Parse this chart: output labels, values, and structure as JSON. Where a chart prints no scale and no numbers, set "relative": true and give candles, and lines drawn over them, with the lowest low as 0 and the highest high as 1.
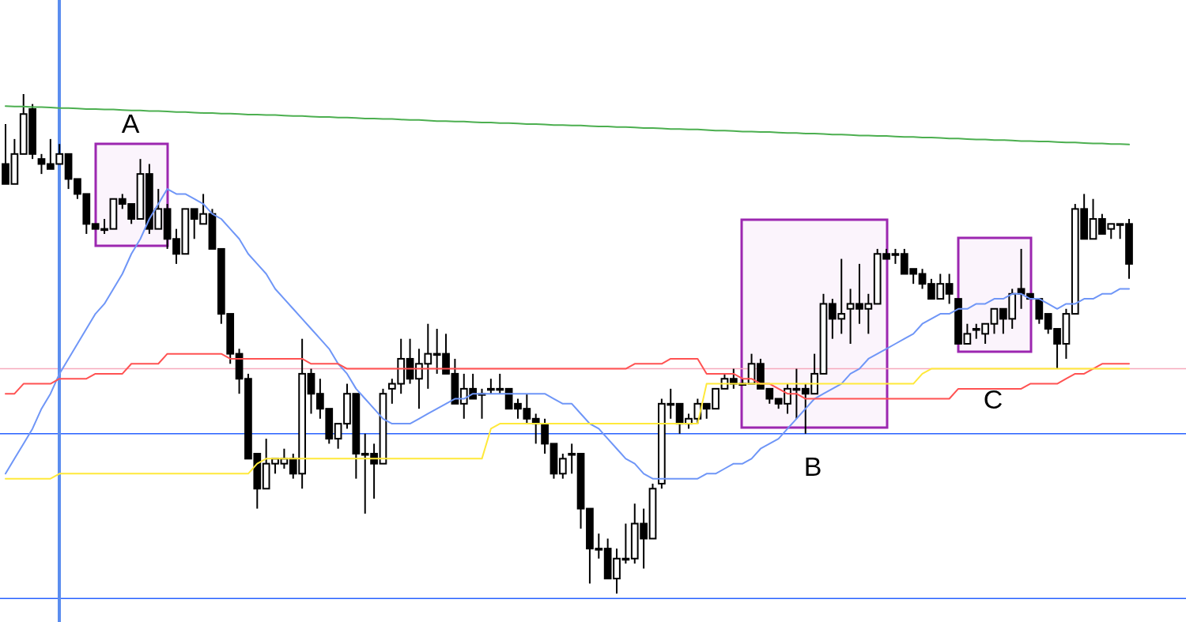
{
  "chart_data": {
    "type": "candlestick",
    "relative": true,
    "tick_labels": false,
    "categories": [
      null,
      null,
      null,
      null,
      null,
      null,
      null,
      null,
      null,
      null,
      null,
      null,
      null,
      null,
      null,
      null,
      null,
      null,
      null,
      null,
      null,
      null,
      null,
      null,
      null,
      null,
      null,
      null,
      null,
      null,
      null,
      null,
      null,
      null,
      null,
      null,
      null,
      null,
      null,
      null,
      null,
      null,
      null,
      null,
      null,
      null,
      null,
      null,
      null,
      null,
      null,
      null,
      null,
      null,
      null,
      null,
      null,
      null,
      null,
      null,
      null,
      null,
      null,
      null,
      null,
      null,
      null,
      null,
      null,
      null,
      null,
      null,
      null,
      null,
      null,
      null,
      null,
      null,
      null,
      null,
      null,
      null,
      null,
      null,
      null,
      null,
      null,
      null,
      null,
      null,
      null,
      null,
      null,
      null,
      null,
      null,
      null,
      null,
      null,
      null,
      null,
      null,
      null,
      null,
      null,
      null,
      null,
      null,
      null,
      null,
      null,
      null,
      null,
      null,
      null,
      null,
      null,
      null,
      null,
      null,
      null,
      null,
      null,
      null,
      null,
      null
    ],
    "ohlc": [
      [
        0.86,
        0.94,
        0.82,
        0.82
      ],
      [
        0.82,
        0.91,
        0.82,
        0.88
      ],
      [
        0.88,
        1,
        0.88,
        0.96
      ],
      [
        0.97,
        0.98,
        0.87,
        0.88
      ],
      [
        0.87,
        0.88,
        0.84,
        0.86
      ],
      [
        0.86,
        0.91,
        0.85,
        0.85
      ],
      [
        0.86,
        0.9,
        0.86,
        0.88
      ],
      [
        0.88,
        0.88,
        0.81,
        0.83
      ],
      [
        0.83,
        0.83,
        0.79,
        0.8
      ],
      [
        0.8,
        0.8,
        0.72,
        0.74
      ],
      [
        0.74,
        0.74,
        0.73,
        0.73
      ],
      [
        0.73,
        0.75,
        0.72,
        0.73
      ],
      [
        0.73,
        0.79,
        0.73,
        0.79
      ],
      [
        0.79,
        0.8,
        0.77,
        0.78
      ],
      [
        0.78,
        0.78,
        0.74,
        0.75
      ],
      [
        0.75,
        0.87,
        0.75,
        0.84
      ],
      [
        0.84,
        0.86,
        0.72,
        0.73
      ],
      [
        0.73,
        0.81,
        0.73,
        0.77
      ],
      [
        0.77,
        0.78,
        0.69,
        0.71
      ],
      [
        0.71,
        0.73,
        0.66,
        0.68
      ],
      [
        0.68,
        0.77,
        0.68,
        0.77
      ],
      [
        0.77,
        0.77,
        0.71,
        0.75
      ],
      [
        0.74,
        0.8,
        0.74,
        0.76
      ],
      [
        0.76,
        0.77,
        0.69,
        0.69
      ],
      [
        0.69,
        0.69,
        0.54,
        0.56
      ],
      [
        0.56,
        0.56,
        0.46,
        0.48
      ],
      [
        0.48,
        0.49,
        0.4,
        0.43
      ],
      [
        0.43,
        0.44,
        0.27,
        0.27
      ],
      [
        0.28,
        0.28,
        0.17,
        0.21
      ],
      [
        0.21,
        0.31,
        0.21,
        0.26
      ],
      [
        0.26,
        0.27,
        0.24,
        0.27
      ],
      [
        0.26,
        0.29,
        0.25,
        0.27
      ],
      [
        0.27,
        0.28,
        0.23,
        0.24
      ],
      [
        0.24,
        0.51,
        0.21,
        0.44
      ],
      [
        0.44,
        0.45,
        0.36,
        0.4
      ],
      [
        0.4,
        0.43,
        0.35,
        0.37
      ],
      [
        0.37,
        0.37,
        0.3,
        0.31
      ],
      [
        0.31,
        0.34,
        0.29,
        0.34
      ],
      [
        0.34,
        0.42,
        0.33,
        0.4
      ],
      [
        0.4,
        0.4,
        0.23,
        0.28
      ],
      [
        0.28,
        0.32,
        0.16,
        0.28
      ],
      [
        0.28,
        0.3,
        0.19,
        0.26
      ],
      [
        0.26,
        0.41,
        0.26,
        0.4
      ],
      [
        0.41,
        0.43,
        0.38,
        0.42
      ],
      [
        0.42,
        0.51,
        0.4,
        0.47
      ],
      [
        0.47,
        0.51,
        0.42,
        0.43
      ],
      [
        0.43,
        0.49,
        0.37,
        0.46
      ],
      [
        0.46,
        0.54,
        0.41,
        0.48
      ],
      [
        0.48,
        0.53,
        0.44,
        0.48
      ],
      [
        0.48,
        0.52,
        0.44,
        0.44
      ],
      [
        0.44,
        0.47,
        0.38,
        0.38
      ],
      [
        0.38,
        0.44,
        0.35,
        0.41
      ],
      [
        0.41,
        0.44,
        0.39,
        0.39
      ],
      [
        0.4,
        0.41,
        0.35,
        0.4
      ],
      [
        0.41,
        0.43,
        0.4,
        0.41
      ],
      [
        0.41,
        0.44,
        0.4,
        0.41
      ],
      [
        0.41,
        0.41,
        0.37,
        0.37
      ],
      [
        0.38,
        0.39,
        0.35,
        0.37
      ],
      [
        0.37,
        0.4,
        0.34,
        0.35
      ],
      [
        0.35,
        0.36,
        0.3,
        0.34
      ],
      [
        0.34,
        0.35,
        0.28,
        0.3
      ],
      [
        0.3,
        0.3,
        0.23,
        0.24
      ],
      [
        0.24,
        0.28,
        0.23,
        0.27
      ],
      [
        0.28,
        0.3,
        0.24,
        0.28
      ],
      [
        0.28,
        0.28,
        0.13,
        0.17
      ],
      [
        0.17,
        0.17,
        0.02,
        0.09
      ],
      [
        0.09,
        0.12,
        0.07,
        0.09
      ],
      [
        0.09,
        0.11,
        0.03,
        0.03
      ],
      [
        0.03,
        0.09,
        0,
        0.07
      ],
      [
        0.07,
        0.14,
        0.06,
        0.07
      ],
      [
        0.07,
        0.18,
        0.06,
        0.14
      ],
      [
        0.14,
        0.17,
        0.05,
        0.11
      ],
      [
        0.11,
        0.22,
        0.11,
        0.21
      ],
      [
        0.22,
        0.39,
        0.21,
        0.38
      ],
      [
        0.38,
        0.41,
        0.35,
        0.38
      ],
      [
        0.38,
        0.38,
        0.32,
        0.34
      ],
      [
        0.34,
        0.36,
        0.33,
        0.35
      ],
      [
        0.35,
        0.39,
        0.34,
        0.38
      ],
      [
        0.38,
        0.38,
        0.35,
        0.37
      ],
      [
        0.37,
        0.41,
        0.37,
        0.41
      ],
      [
        0.41,
        0.44,
        0.41,
        0.43
      ],
      [
        0.43,
        0.45,
        0.41,
        0.42
      ],
      [
        0.42,
        0.43,
        0.42,
        0.42
      ],
      [
        0.42,
        0.48,
        0.42,
        0.46
      ],
      [
        0.46,
        0.47,
        0.41,
        0.41
      ],
      [
        0.41,
        0.41,
        0.38,
        0.39
      ],
      [
        0.39,
        0.39,
        0.37,
        0.38
      ],
      [
        0.38,
        0.42,
        0.36,
        0.41
      ],
      [
        0.41,
        0.45,
        0.35,
        0.41
      ],
      [
        0.41,
        0.42,
        0.32,
        0.4
      ],
      [
        0.4,
        0.48,
        0.4,
        0.44
      ],
      [
        0.44,
        0.6,
        0.44,
        0.58
      ],
      [
        0.58,
        0.59,
        0.51,
        0.55
      ],
      [
        0.55,
        0.67,
        0.52,
        0.56
      ],
      [
        0.57,
        0.61,
        0.5,
        0.58
      ],
      [
        0.58,
        0.66,
        0.54,
        0.57
      ],
      [
        0.57,
        0.6,
        0.52,
        0.58
      ],
      [
        0.58,
        0.69,
        0.58,
        0.68
      ],
      [
        0.68,
        0.69,
        0.67,
        0.67
      ],
      [
        0.68,
        0.69,
        0.66,
        0.68
      ],
      [
        0.68,
        0.69,
        0.64,
        0.64
      ],
      [
        0.65,
        0.65,
        0.62,
        0.64
      ],
      [
        0.64,
        0.65,
        0.61,
        0.62
      ],
      [
        0.62,
        0.63,
        0.59,
        0.59
      ],
      [
        0.59,
        0.64,
        0.59,
        0.62
      ],
      [
        0.62,
        0.64,
        0.58,
        0.6
      ],
      [
        0.59,
        0.59,
        0.5,
        0.5
      ],
      [
        0.5,
        0.54,
        0.5,
        0.52
      ],
      [
        0.53,
        0.54,
        0.51,
        0.53
      ],
      [
        0.52,
        0.54,
        0.5,
        0.54
      ],
      [
        0.54,
        0.57,
        0.52,
        0.57
      ],
      [
        0.57,
        0.57,
        0.52,
        0.55
      ],
      [
        0.55,
        0.61,
        0.53,
        0.6
      ],
      [
        0.61,
        0.69,
        0.57,
        0.6
      ],
      [
        0.6,
        0.6,
        0.59,
        0.59
      ],
      [
        0.59,
        0.59,
        0.54,
        0.55
      ],
      [
        0.56,
        0.56,
        0.52,
        0.53
      ],
      [
        0.53,
        0.53,
        0.45,
        0.5
      ],
      [
        0.5,
        0.57,
        0.47,
        0.56
      ],
      [
        0.56,
        0.78,
        0.56,
        0.77
      ],
      [
        0.77,
        0.8,
        0.71,
        0.71
      ],
      [
        0.71,
        0.79,
        0.71,
        0.75
      ],
      [
        0.75,
        0.76,
        0.72,
        0.72
      ],
      [
        0.73,
        0.74,
        0.71,
        0.74
      ],
      [
        0.74,
        0.74,
        0.71,
        0.74
      ],
      [
        0.74,
        0.75,
        0.63,
        0.66
      ]
    ],
    "series": [
      {
        "type": "line",
        "color": "#4caf50",
        "values": [
          0.976,
          0.975,
          0.975,
          0.974,
          0.974,
          0.973,
          0.972,
          0.972,
          0.971,
          0.97,
          0.97,
          0.969,
          0.969,
          0.968,
          0.967,
          0.967,
          0.966,
          0.966,
          0.965,
          0.964,
          0.964,
          0.963,
          0.962,
          0.962,
          0.961,
          0.961,
          0.96,
          0.959,
          0.959,
          0.958,
          0.958,
          0.957,
          0.956,
          0.956,
          0.955,
          0.954,
          0.954,
          0.953,
          0.953,
          0.952,
          0.951,
          0.951,
          0.95,
          0.95,
          0.949,
          0.948,
          0.948,
          0.947,
          0.946,
          0.946,
          0.945,
          0.945,
          0.944,
          0.943,
          0.943,
          0.942,
          0.942,
          0.941,
          0.94,
          0.94,
          0.939,
          0.938,
          0.938,
          0.937,
          0.937,
          0.936,
          0.935,
          0.935,
          0.934,
          0.934,
          0.933,
          0.932,
          0.932,
          0.931,
          0.93,
          0.93,
          0.929,
          0.929,
          0.928,
          0.927,
          0.927,
          0.926,
          0.925,
          0.925,
          0.924,
          0.924,
          0.923,
          0.922,
          0.922,
          0.921,
          0.921,
          0.92,
          0.919,
          0.919,
          0.918,
          0.917,
          0.917,
          0.916,
          0.916,
          0.915,
          0.914,
          0.914,
          0.913,
          0.913,
          0.912,
          0.911,
          0.911,
          0.91,
          0.909,
          0.909,
          0.908,
          0.908,
          0.907,
          0.906,
          0.906,
          0.905,
          0.905,
          0.904,
          0.903,
          0.903,
          0.902,
          0.901,
          0.901,
          0.9,
          0.9,
          0.899
        ]
      },
      {
        "type": "line",
        "color": "#6f96f7",
        "values": [
          0.24,
          0.27,
          0.3,
          0.33,
          0.37,
          0.4,
          0.44,
          0.47,
          0.5,
          0.53,
          0.56,
          0.58,
          0.61,
          0.64,
          0.68,
          0.71,
          0.75,
          0.78,
          0.81,
          0.8,
          0.8,
          0.79,
          0.78,
          0.76,
          0.75,
          0.73,
          0.71,
          0.68,
          0.66,
          0.64,
          0.61,
          0.59,
          0.57,
          0.55,
          0.53,
          0.51,
          0.49,
          0.46,
          0.44,
          0.41,
          0.39,
          0.37,
          0.35,
          0.34,
          0.34,
          0.34,
          0.35,
          0.36,
          0.37,
          0.38,
          0.39,
          0.39,
          0.4,
          0.4,
          0.4,
          0.4,
          0.4,
          0.4,
          0.4,
          0.4,
          0.4,
          0.39,
          0.38,
          0.38,
          0.36,
          0.34,
          0.33,
          0.31,
          0.29,
          0.27,
          0.26,
          0.24,
          0.23,
          0.23,
          0.23,
          0.23,
          0.23,
          0.23,
          0.24,
          0.24,
          0.25,
          0.26,
          0.26,
          0.27,
          0.29,
          0.3,
          0.31,
          0.33,
          0.35,
          0.37,
          0.39,
          0.4,
          0.41,
          0.42,
          0.44,
          0.45,
          0.47,
          0.48,
          0.49,
          0.5,
          0.51,
          0.52,
          0.54,
          0.55,
          0.56,
          0.56,
          0.57,
          0.57,
          0.58,
          0.58,
          0.59,
          0.59,
          0.6,
          0.6,
          0.59,
          0.59,
          0.58,
          0.57,
          0.58,
          0.58,
          0.59,
          0.59,
          0.6,
          0.6,
          0.61,
          0.61
        ]
      },
      {
        "type": "line",
        "color": "#ff5252",
        "values": [
          0.4,
          0.4,
          0.42,
          0.42,
          0.42,
          0.42,
          0.43,
          0.43,
          0.43,
          0.43,
          0.44,
          0.44,
          0.44,
          0.44,
          0.46,
          0.46,
          0.46,
          0.46,
          0.48,
          0.48,
          0.48,
          0.48,
          0.48,
          0.48,
          0.48,
          0.47,
          0.47,
          0.47,
          0.47,
          0.47,
          0.47,
          0.47,
          0.47,
          0.47,
          0.46,
          0.46,
          0.46,
          0.46,
          0.45,
          0.45,
          0.45,
          0.45,
          0.45,
          0.45,
          0.45,
          0.45,
          0.45,
          0.45,
          0.45,
          0.45,
          0.45,
          0.45,
          0.45,
          0.45,
          0.45,
          0.45,
          0.45,
          0.45,
          0.45,
          0.45,
          0.45,
          0.45,
          0.45,
          0.45,
          0.45,
          0.45,
          0.45,
          0.45,
          0.45,
          0.45,
          0.46,
          0.46,
          0.46,
          0.46,
          0.47,
          0.47,
          0.47,
          0.47,
          0.44,
          0.44,
          0.44,
          0.44,
          0.43,
          0.43,
          0.42,
          0.42,
          0.41,
          0.4,
          0.4,
          0.39,
          0.39,
          0.39,
          0.39,
          0.39,
          0.39,
          0.39,
          0.39,
          0.39,
          0.39,
          0.39,
          0.39,
          0.39,
          0.39,
          0.39,
          0.39,
          0.39,
          0.41,
          0.41,
          0.41,
          0.41,
          0.41,
          0.41,
          0.41,
          0.41,
          0.42,
          0.42,
          0.42,
          0.42,
          0.43,
          0.44,
          0.44,
          0.45,
          0.46,
          0.46,
          0.46,
          0.46
        ]
      },
      {
        "type": "line",
        "color": "#ffe93b",
        "values": [
          0.23,
          0.23,
          0.23,
          0.23,
          0.23,
          0.23,
          0.24,
          0.24,
          0.24,
          0.24,
          0.24,
          0.24,
          0.24,
          0.24,
          0.24,
          0.24,
          0.24,
          0.24,
          0.24,
          0.24,
          0.24,
          0.24,
          0.24,
          0.24,
          0.24,
          0.24,
          0.24,
          0.24,
          0.26,
          0.27,
          0.27,
          0.27,
          0.27,
          0.27,
          0.27,
          0.27,
          0.27,
          0.27,
          0.27,
          0.27,
          0.27,
          0.27,
          0.27,
          0.27,
          0.27,
          0.27,
          0.27,
          0.27,
          0.27,
          0.27,
          0.27,
          0.27,
          0.27,
          0.27,
          0.33,
          0.34,
          0.34,
          0.34,
          0.34,
          0.34,
          0.34,
          0.34,
          0.34,
          0.34,
          0.34,
          0.34,
          0.34,
          0.34,
          0.34,
          0.34,
          0.34,
          0.34,
          0.34,
          0.34,
          0.34,
          0.34,
          0.34,
          0.34,
          0.42,
          0.42,
          0.42,
          0.42,
          0.42,
          0.42,
          0.42,
          0.42,
          0.42,
          0.42,
          0.42,
          0.42,
          0.42,
          0.42,
          0.42,
          0.42,
          0.42,
          0.42,
          0.42,
          0.42,
          0.42,
          0.42,
          0.42,
          0.42,
          0.44,
          0.45,
          0.45,
          0.45,
          0.45,
          0.45,
          0.45,
          0.45,
          0.45,
          0.45,
          0.45,
          0.45,
          0.45,
          0.45,
          0.45,
          0.45,
          0.45,
          0.45,
          0.45,
          0.45,
          0.45,
          0.45,
          0.45,
          0.45
        ]
      }
    ],
    "ref_lines": [
      {
        "axis": "y",
        "value": 0.45,
        "color": "#f6aabd"
      },
      {
        "axis": "y",
        "value": 0.32,
        "color": "#2962ff"
      },
      {
        "axis": "y",
        "value": -0.01,
        "color": "#2962ff"
      }
    ],
    "annotations": [
      "A",
      "B",
      "C"
    ]
  }
}
